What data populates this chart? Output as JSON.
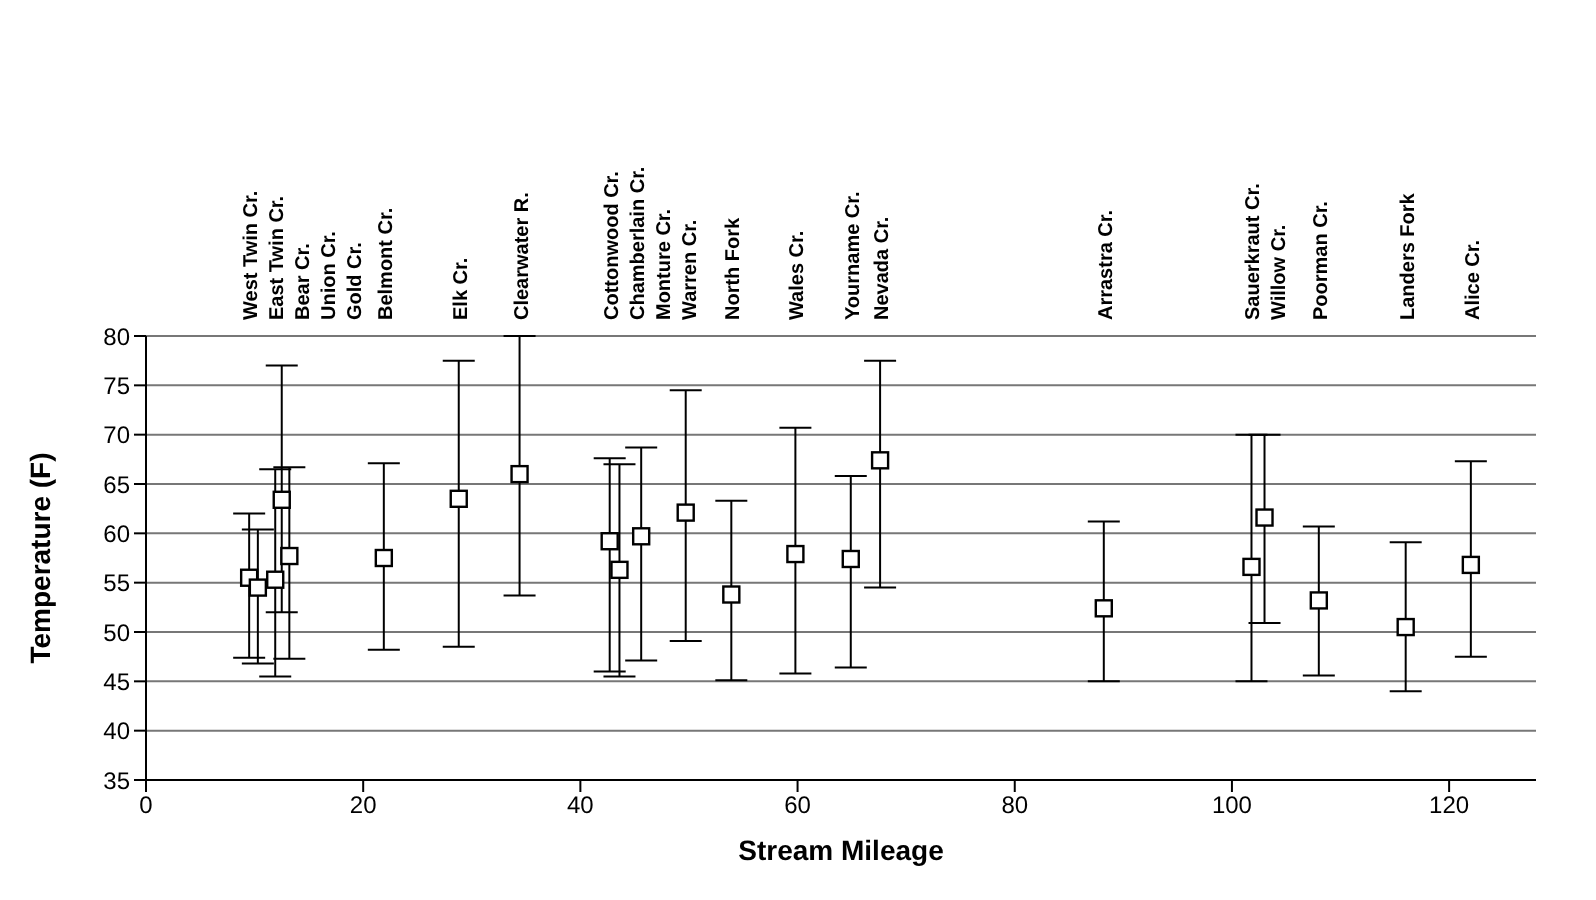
{
  "chart_data": {
    "type": "scatter",
    "xlabel": "Stream Mileage",
    "ylabel": "Temperature (F)",
    "x": [
      9.5,
      10.3,
      11.9,
      12.5,
      13.2,
      21.9,
      28.8,
      34.4,
      42.7,
      43.6,
      45.6,
      49.7,
      53.9,
      59.8,
      64.9,
      67.6,
      88.2,
      101.8,
      103,
      108,
      116,
      122
    ],
    "values": [
      55.5,
      54.5,
      55.3,
      63.4,
      57.7,
      57.5,
      63.5,
      66,
      59.2,
      56.3,
      59.7,
      62.1,
      53.8,
      57.9,
      57.4,
      67.4,
      52.4,
      56.6,
      61.6,
      53.2,
      50.5,
      56.8
    ],
    "errors": [
      [
        47.4,
        62
      ],
      [
        46.8,
        60.4
      ],
      [
        45.5,
        66.5
      ],
      [
        52,
        77
      ],
      [
        47.3,
        66.7
      ],
      [
        48.2,
        67.1
      ],
      [
        48.5,
        77.5
      ],
      [
        53.7,
        80
      ],
      [
        46,
        67.6
      ],
      [
        45.5,
        67
      ],
      [
        47.1,
        68.7
      ],
      [
        49.1,
        74.5
      ],
      [
        45.1,
        63.3
      ],
      [
        45.8,
        70.7
      ],
      [
        46.4,
        65.8
      ],
      [
        54.5,
        77.5
      ],
      [
        45,
        61.2
      ],
      [
        45,
        70
      ],
      [
        50.9,
        70
      ],
      [
        45.6,
        60.7
      ],
      [
        44,
        59.1
      ],
      [
        47.5,
        67.3
      ]
    ],
    "color": "#000000",
    "marker": "square",
    "grid": "y",
    "legend": false,
    "xlim": [
      0,
      128
    ],
    "xticks": [
      0,
      20,
      40,
      60,
      80,
      100,
      120
    ],
    "ylim": [
      35,
      80
    ],
    "yticks": [
      35,
      40,
      45,
      50,
      55,
      60,
      65,
      70,
      75,
      80
    ],
    "annotations": [
      "West Twin Cr.",
      "East Twin Cr.",
      "Bear Cr.",
      "Union Cr.",
      "Gold Cr.",
      "Belmont Cr.",
      "Elk Cr.",
      "Clearwater R.",
      "Cottonwood Cr.",
      "Chamberlain Cr.",
      "Monture Cr.",
      "Warren Cr.",
      "North Fork",
      "Wales Cr.",
      "Yourname Cr.",
      "Nevada Cr.",
      "Arrastra Cr.",
      "Sauerkraut Cr.",
      "Willow Cr.",
      "Poorman Cr.",
      "Landers Fork",
      "Alice Cr."
    ]
  }
}
